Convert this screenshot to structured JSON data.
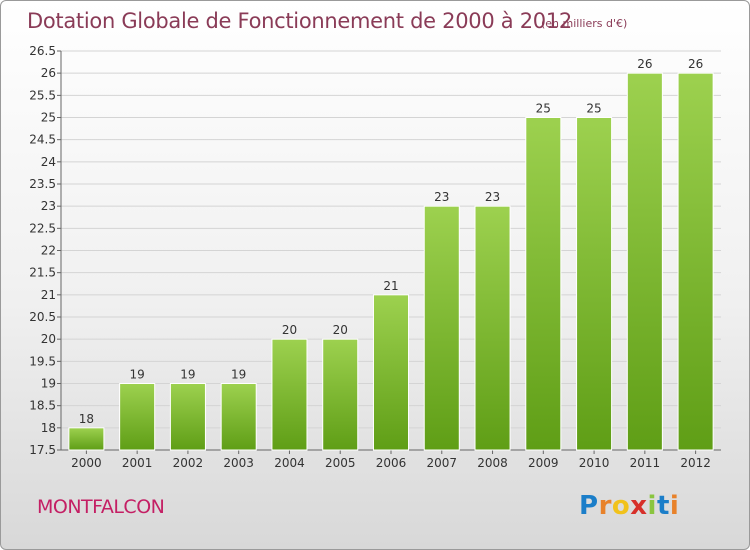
{
  "header": {
    "title": "Dotation Globale de Fonctionnement de 2000 à 2012",
    "unit": "(en milliers d'€)"
  },
  "footer": {
    "commune": "MONTFALCON",
    "logo_text": "Proxiti"
  },
  "colors": {
    "bar_top": "#9dd14f",
    "bar_bottom": "#5f9e16",
    "title": "#8a3b57",
    "commune": "#c41f64"
  },
  "chart_data": {
    "type": "bar",
    "title": "Dotation Globale de Fonctionnement de 2000 à 2012",
    "subtitle": "(en milliers d'€)",
    "categories": [
      "2000",
      "2001",
      "2002",
      "2003",
      "2004",
      "2005",
      "2006",
      "2007",
      "2008",
      "2009",
      "2010",
      "2011",
      "2012"
    ],
    "values": [
      18,
      19,
      19,
      19,
      20,
      20,
      21,
      23,
      23,
      25,
      25,
      26,
      26
    ],
    "ylim": [
      17.5,
      26.5
    ],
    "yticks": [
      17.5,
      18,
      18.5,
      19,
      19.5,
      20,
      20.5,
      21,
      21.5,
      22,
      22.5,
      23,
      23.5,
      24,
      24.5,
      25,
      25.5,
      26,
      26.5
    ],
    "grid": "horizontal",
    "xlabel": "",
    "ylabel": ""
  }
}
